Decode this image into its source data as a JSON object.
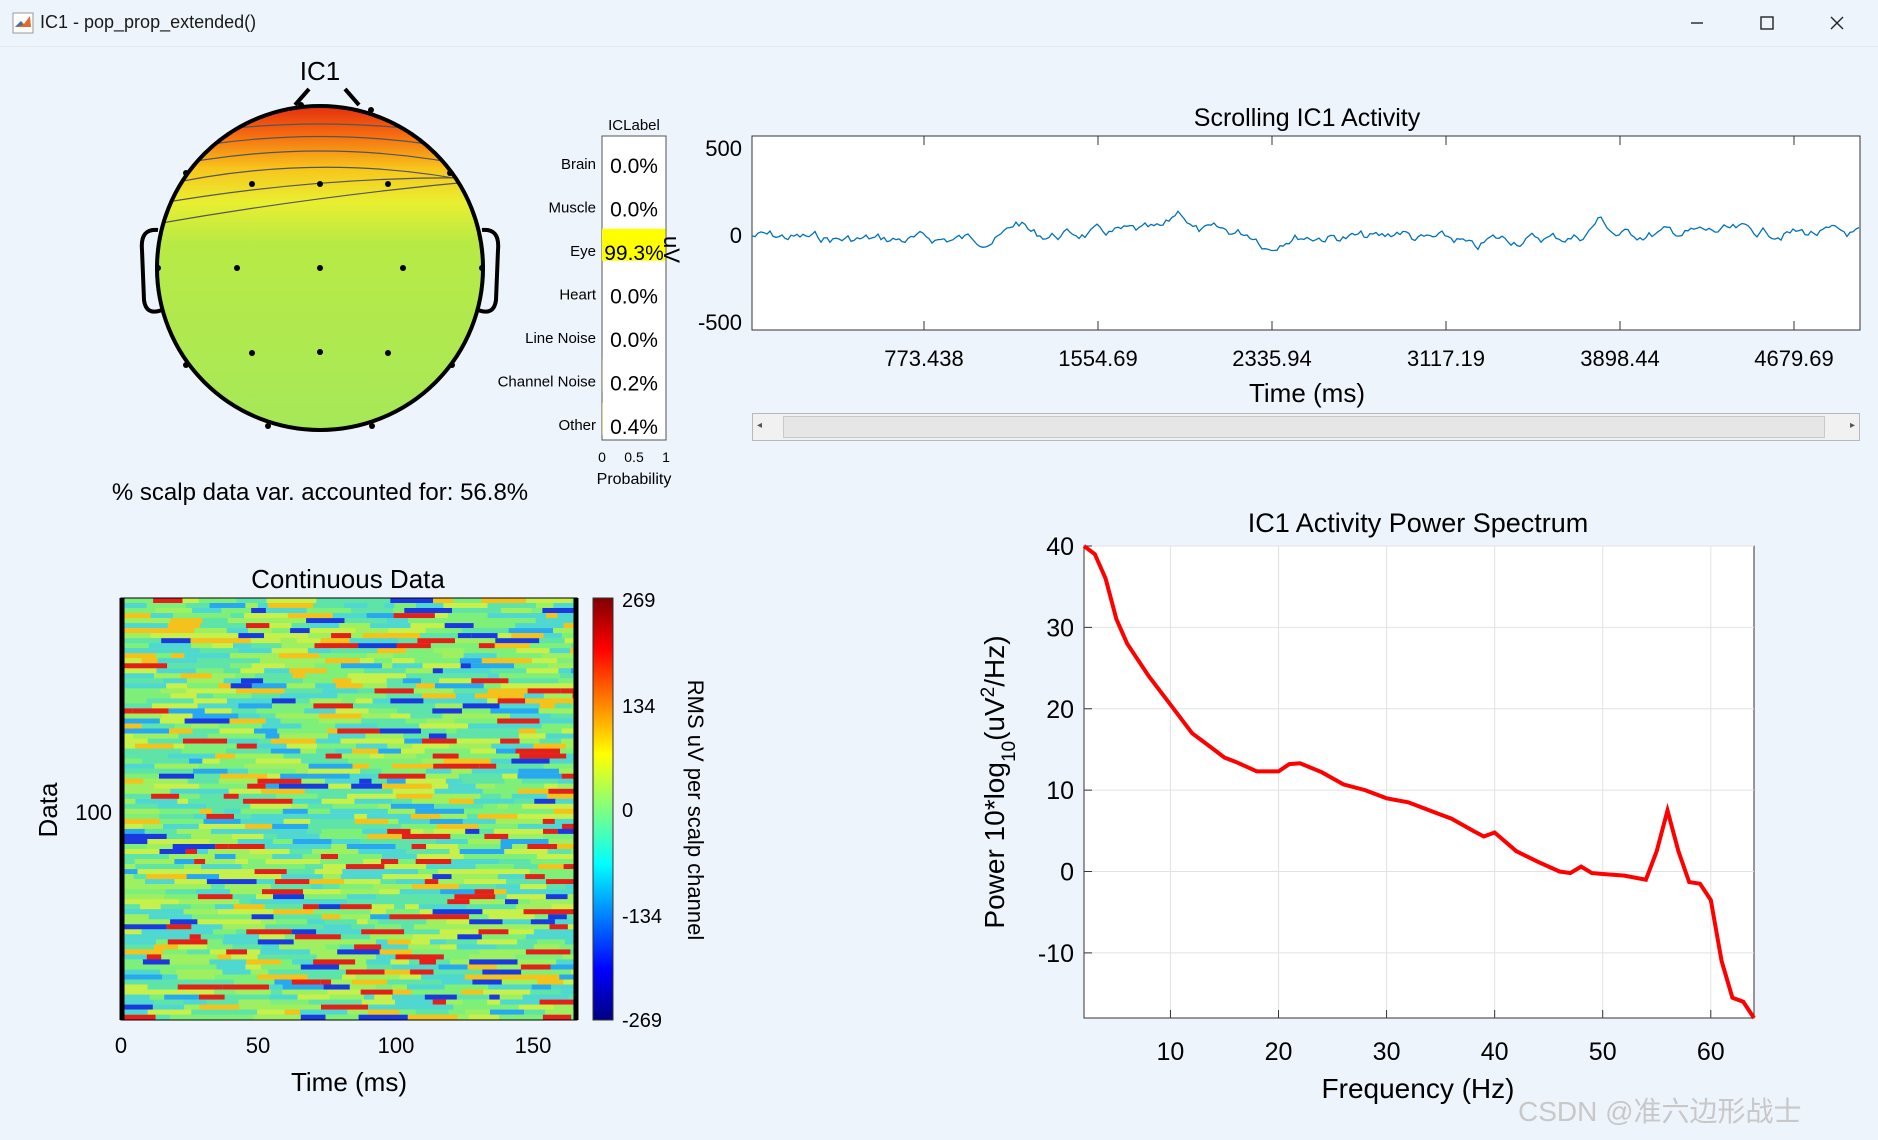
{
  "window": {
    "title": "IC1 - pop_prop_extended()"
  },
  "topo": {
    "title": "IC1",
    "caption": "% scalp data var. accounted for: 56.8%"
  },
  "iclabel": {
    "title": "ICLabel",
    "xlabel": "Probability",
    "ticks": [
      "0",
      "0.5",
      "1"
    ],
    "classes": [
      {
        "name": "Brain",
        "value": "0.0%",
        "prob": 0.0
      },
      {
        "name": "Muscle",
        "value": "0.0%",
        "prob": 0.0
      },
      {
        "name": "Eye",
        "value": "99.3%",
        "prob": 0.993
      },
      {
        "name": "Heart",
        "value": "0.0%",
        "prob": 0.0
      },
      {
        "name": "Line Noise",
        "value": "0.0%",
        "prob": 0.0
      },
      {
        "name": "Channel Noise",
        "value": "0.2%",
        "prob": 0.002
      },
      {
        "name": "Other",
        "value": "0.4%",
        "prob": 0.004
      }
    ],
    "highlight_color": "#ffff00"
  },
  "scrolling": {
    "title": "Scrolling IC1 Activity",
    "ylabel": "uV",
    "xlabel": "Time (ms)",
    "yticks": [
      "500",
      "0",
      "-500"
    ],
    "xticks": [
      "773.438",
      "1554.69",
      "2335.94",
      "3117.19",
      "3898.44",
      "4679.69"
    ],
    "line_color": "#0072bd"
  },
  "erpimage": {
    "title": "Continuous Data",
    "ylabel": "Data",
    "ytick": "100",
    "xlabel": "Time (ms)",
    "xticks": [
      "0",
      "50",
      "100",
      "150"
    ],
    "colorbar_label": "RMS uV per scalp channel",
    "colorbar_ticks": [
      "269",
      "134",
      "0",
      "-134",
      "-269"
    ]
  },
  "chart_data": {
    "type": "line",
    "title": "IC1 Activity Power Spectrum",
    "xlabel": "Frequency (Hz)",
    "ylabel": "Power 10*log10(uV2/Hz)",
    "xlim": [
      2,
      64
    ],
    "ylim": [
      -18,
      40
    ],
    "xticks": [
      "10",
      "20",
      "30",
      "40",
      "50",
      "60"
    ],
    "yticks": [
      "40",
      "30",
      "20",
      "10",
      "0",
      "-10"
    ],
    "grid": true,
    "color": "#ff0000",
    "x": [
      2,
      3,
      4,
      5,
      6,
      8,
      10,
      12,
      14,
      15,
      16,
      18,
      20,
      21,
      22,
      24,
      26,
      28,
      30,
      32,
      34,
      35,
      36,
      38,
      39,
      40,
      42,
      44,
      46,
      47,
      48,
      49,
      50,
      52,
      54,
      55,
      56,
      57,
      58,
      59,
      60,
      61,
      62,
      63,
      64
    ],
    "y": [
      40,
      39,
      36,
      31,
      28,
      24,
      20.5,
      17,
      15,
      14,
      13.5,
      12.3,
      12.3,
      13.2,
      13.3,
      12.2,
      10.7,
      10,
      9,
      8.5,
      7.5,
      7,
      6.5,
      5,
      4.3,
      4.8,
      2.5,
      1.2,
      0,
      -0.2,
      0.6,
      -0.2,
      -0.3,
      -0.5,
      -1,
      2.5,
      7.5,
      2.5,
      -1.3,
      -1.5,
      -3.5,
      -11,
      -15.5,
      -16,
      -18
    ]
  },
  "watermark": "CSDN @准六边形战士"
}
